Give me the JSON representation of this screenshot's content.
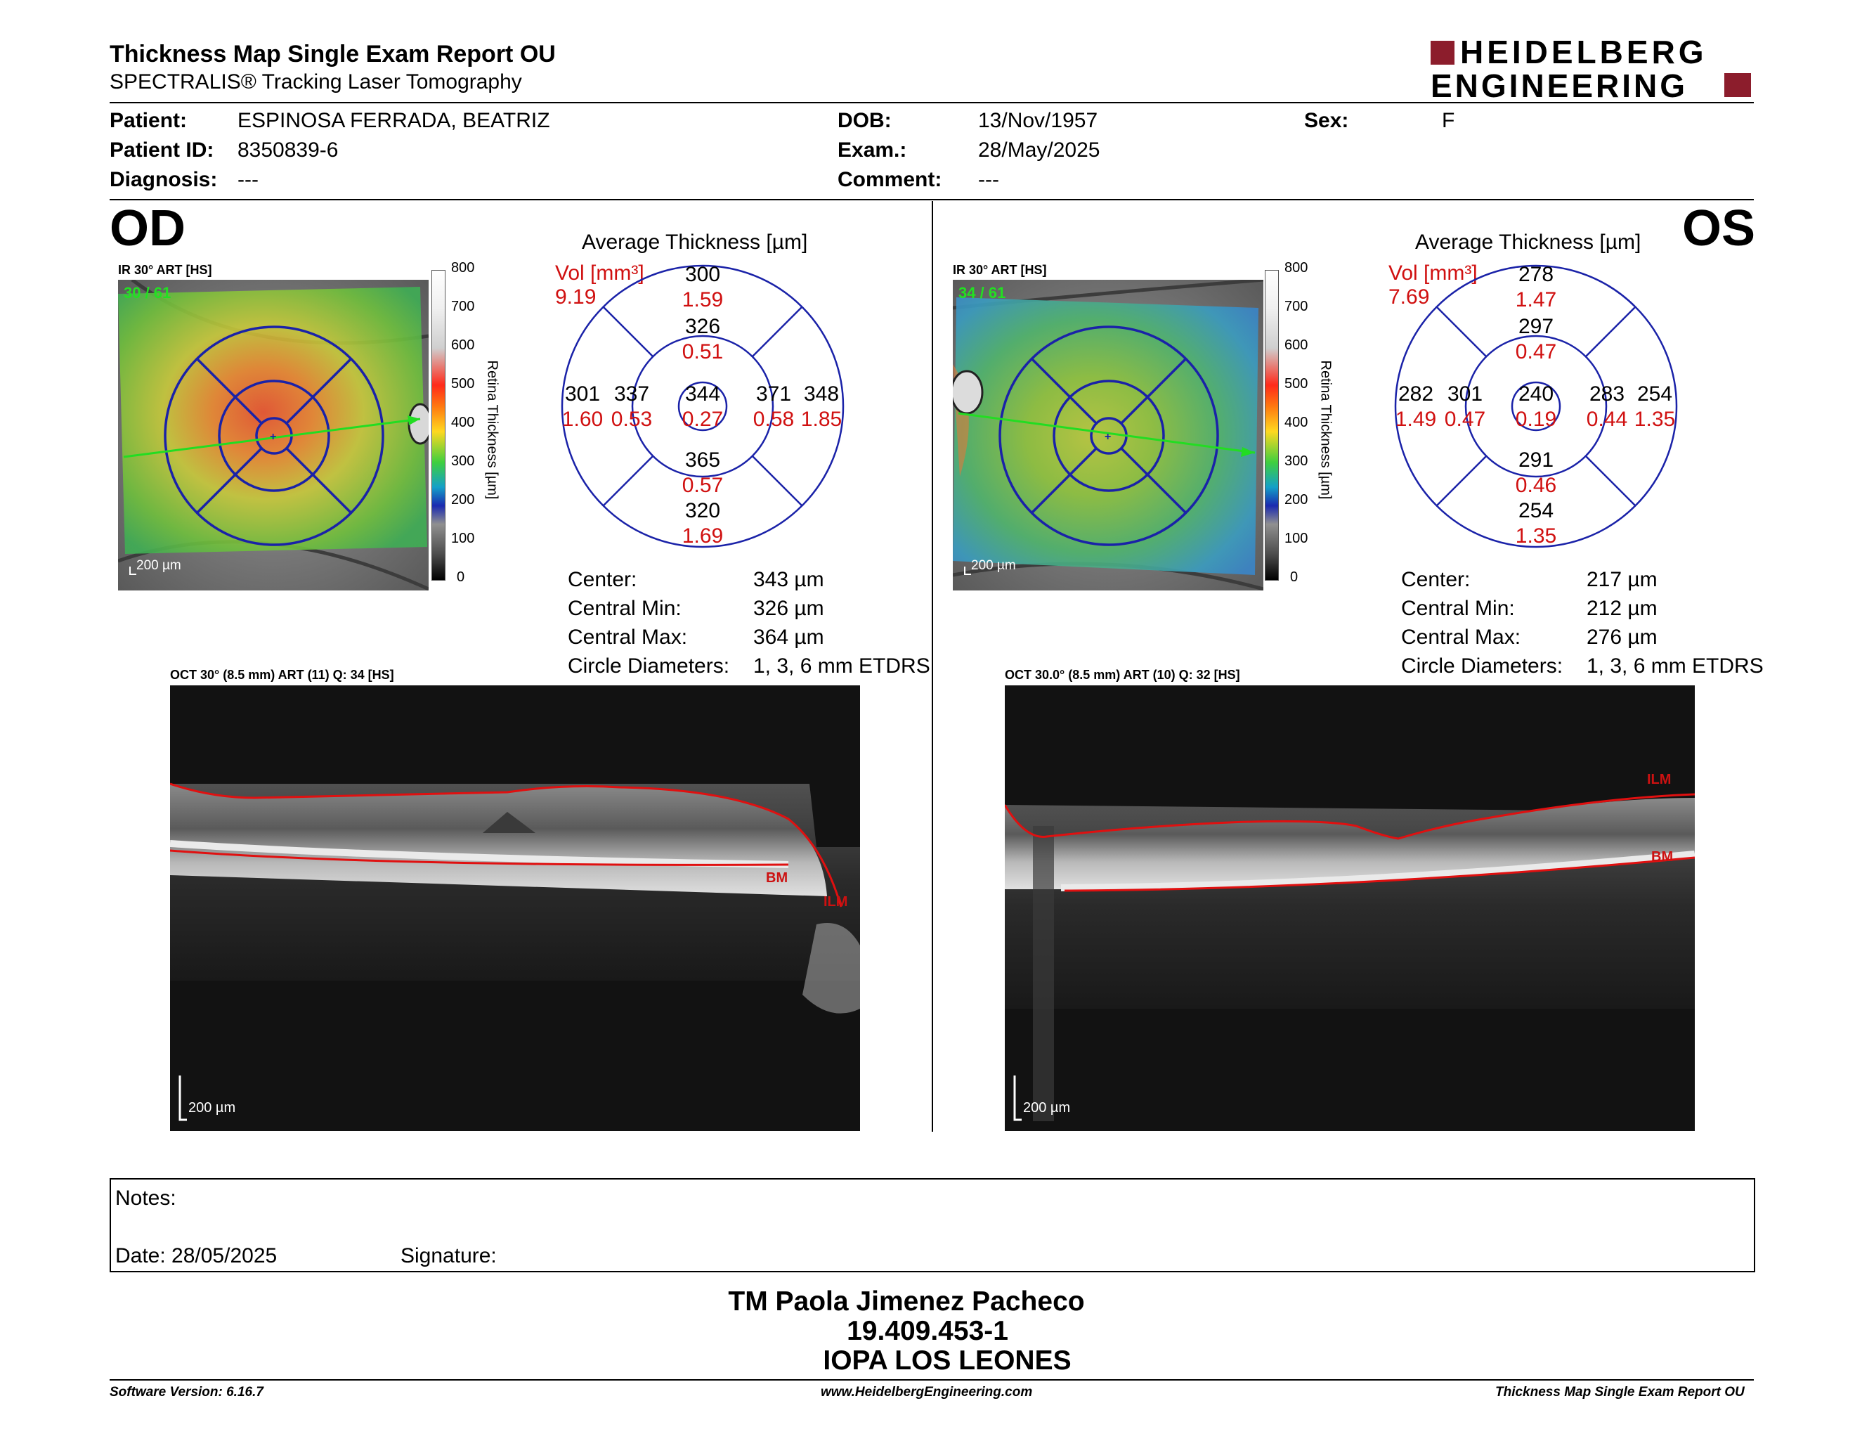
{
  "header": {
    "title": "Thickness Map Single Exam Report OU",
    "subtitle": "SPECTRALIS® Tracking Laser Tomography",
    "logo_line1": "HEIDELBERG",
    "logo_line2": "ENGINEERING"
  },
  "patient": {
    "patient_label": "Patient:",
    "patient_value": "ESPINOSA FERRADA, BEATRIZ",
    "id_label": "Patient ID:",
    "id_value": "8350839-6",
    "diagnosis_label": "Diagnosis:",
    "diagnosis_value": "---",
    "dob_label": "DOB:",
    "dob_value": "13/Nov/1957",
    "exam_label": "Exam.:",
    "exam_value": "28/May/2025",
    "comment_label": "Comment:",
    "comment_value": "---",
    "sex_label": "Sex:",
    "sex_value": "F"
  },
  "od": {
    "eye_label": "OD",
    "fundus_label": "IR 30° ART [HS]",
    "fundus_overlay": "30 / 61",
    "scale_label": "200 µm",
    "avg_title": "Average Thickness [µm]",
    "vol_label": "Vol [mm³]",
    "vol_value": "9.19",
    "sectors": {
      "outer_top": {
        "t": "300",
        "v": "1.59"
      },
      "inner_top": {
        "t": "326",
        "v": "0.51"
      },
      "outer_left": {
        "t": "301",
        "v": "1.60"
      },
      "inner_left": {
        "t": "337",
        "v": "0.53"
      },
      "center": {
        "t": "344",
        "v": "0.27"
      },
      "inner_right": {
        "t": "371",
        "v": "0.58"
      },
      "outer_right": {
        "t": "348",
        "v": "1.85"
      },
      "inner_bottom": {
        "t": "365",
        "v": "0.57"
      },
      "outer_bottom": {
        "t": "320",
        "v": "1.69"
      }
    },
    "stats": {
      "center_label": "Center:",
      "center_value": "343 µm",
      "min_label": "Central Min:",
      "min_value": "326 µm",
      "max_label": "Central Max:",
      "max_value": "364 µm",
      "circ_label": "Circle Diameters:",
      "circ_value": "1, 3, 6 mm ETDRS"
    },
    "oct_label": "OCT 30° (8.5 mm) ART (11) Q: 34 [HS]",
    "oct_scale": "200 µm",
    "ilm": "ILM",
    "bm": "BM"
  },
  "os": {
    "eye_label": "OS",
    "fundus_label": "IR 30° ART [HS]",
    "fundus_overlay": "34 / 61",
    "scale_label": "200 µm",
    "avg_title": "Average Thickness [µm]",
    "vol_label": "Vol [mm³]",
    "vol_value": "7.69",
    "sectors": {
      "outer_top": {
        "t": "278",
        "v": "1.47"
      },
      "inner_top": {
        "t": "297",
        "v": "0.47"
      },
      "outer_left": {
        "t": "282",
        "v": "1.49"
      },
      "inner_left": {
        "t": "301",
        "v": "0.47"
      },
      "center": {
        "t": "240",
        "v": "0.19"
      },
      "inner_right": {
        "t": "283",
        "v": "0.44"
      },
      "outer_right": {
        "t": "254",
        "v": "1.35"
      },
      "inner_bottom": {
        "t": "291",
        "v": "0.46"
      },
      "outer_bottom": {
        "t": "254",
        "v": "1.35"
      }
    },
    "stats": {
      "center_label": "Center:",
      "center_value": "217 µm",
      "min_label": "Central Min:",
      "min_value": "212 µm",
      "max_label": "Central Max:",
      "max_value": "276 µm",
      "circ_label": "Circle Diameters:",
      "circ_value": "1, 3, 6 mm ETDRS"
    },
    "oct_label": "OCT 30.0° (8.5 mm) ART (10) Q: 32 [HS]",
    "oct_scale": "200 µm",
    "ilm": "ILM",
    "bm": "BM"
  },
  "colorbar": {
    "ticks": [
      "800",
      "700",
      "600",
      "500",
      "400",
      "300",
      "200",
      "100",
      "0"
    ],
    "axis_label": "Retina Thickness [µm]"
  },
  "notes": {
    "notes_label": "Notes:",
    "date_label": "Date: 28/05/2025",
    "signature_label": "Signature:"
  },
  "signer": {
    "name": "TM Paola Jimenez Pacheco",
    "id": "19.409.453-1",
    "org": "IOPA LOS LEONES"
  },
  "footer": {
    "version": "Software Version: 6.16.7",
    "url": "www.HeidelbergEngineering.com",
    "report": "Thickness Map Single Exam Report OU"
  },
  "colors": {
    "grid_blue": "#1a22a8",
    "vol_red": "#d01010",
    "logo_red": "#8c1d2c"
  }
}
